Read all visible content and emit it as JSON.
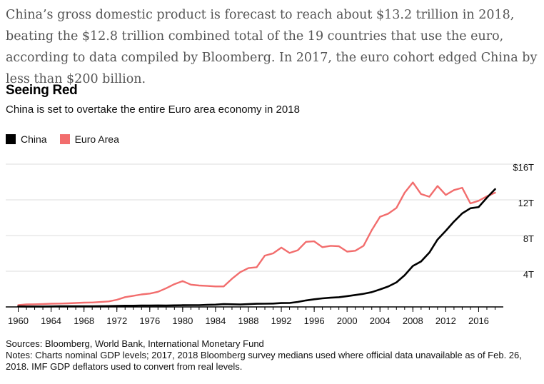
{
  "intro_text": "China’s gross domestic product is forecast to reach about $13.2 trillion in 2018, beating the $12.8 trillion combined total of the 19 countries that use the euro, according to data compiled by Bloomberg. In 2017, the euro cohort edged China by less than $200 billion.",
  "sources": "Sources: Bloomberg, World Bank, International Monetary Fund",
  "notes": "Notes: Charts nominal GDP levels; 2017, 2018 Bloomberg survey medians used where official data unavailable as of Feb. 26, 2018. IMF GDP deflators used to convert from real levels.",
  "colors": {
    "china": "#000000",
    "euro": "#f26d6d",
    "grid": "#dddddd",
    "axis": "#000000"
  },
  "chart_data": {
    "type": "line",
    "title": "Seeing Red",
    "subtitle": "China is set to overtake the entire Euro area economy in 2018",
    "legend_position": "top-left",
    "grid": true,
    "x": [
      1960,
      1961,
      1962,
      1963,
      1964,
      1965,
      1966,
      1967,
      1968,
      1969,
      1970,
      1971,
      1972,
      1973,
      1974,
      1975,
      1976,
      1977,
      1978,
      1979,
      1980,
      1981,
      1982,
      1983,
      1984,
      1985,
      1986,
      1987,
      1988,
      1989,
      1990,
      1991,
      1992,
      1993,
      1994,
      1995,
      1996,
      1997,
      1998,
      1999,
      2000,
      2001,
      2002,
      2003,
      2004,
      2005,
      2006,
      2007,
      2008,
      2009,
      2010,
      2011,
      2012,
      2013,
      2014,
      2015,
      2016,
      2017,
      2018
    ],
    "xlim": [
      1959,
      2019
    ],
    "ylim": [
      0,
      16
    ],
    "x_ticks": [
      1960,
      1964,
      1968,
      1972,
      1976,
      1980,
      1984,
      1988,
      1992,
      1996,
      2000,
      2004,
      2008,
      2012,
      2016
    ],
    "y_ticks": [
      4,
      8,
      12,
      16
    ],
    "y_tick_labels": [
      "4T",
      "8T",
      "12T",
      "$16T"
    ],
    "series": [
      {
        "name": "China",
        "color_key": "china",
        "values": [
          0.06,
          0.05,
          0.05,
          0.05,
          0.06,
          0.07,
          0.08,
          0.07,
          0.07,
          0.08,
          0.09,
          0.1,
          0.11,
          0.14,
          0.14,
          0.16,
          0.15,
          0.17,
          0.15,
          0.18,
          0.19,
          0.2,
          0.2,
          0.23,
          0.26,
          0.31,
          0.3,
          0.27,
          0.31,
          0.35,
          0.36,
          0.38,
          0.43,
          0.44,
          0.56,
          0.73,
          0.86,
          0.96,
          1.03,
          1.09,
          1.21,
          1.34,
          1.47,
          1.66,
          1.96,
          2.29,
          2.75,
          3.55,
          4.59,
          5.1,
          6.09,
          7.55,
          8.53,
          9.57,
          10.48,
          11.06,
          11.19,
          12.24,
          13.2
        ]
      },
      {
        "name": "Euro Area",
        "color_key": "euro",
        "values": [
          0.2,
          0.28,
          0.3,
          0.33,
          0.36,
          0.38,
          0.4,
          0.44,
          0.48,
          0.5,
          0.55,
          0.62,
          0.8,
          1.1,
          1.25,
          1.4,
          1.5,
          1.7,
          2.1,
          2.55,
          2.9,
          2.5,
          2.4,
          2.35,
          2.3,
          2.3,
          3.15,
          3.9,
          4.35,
          4.45,
          5.75,
          6.0,
          6.65,
          6.05,
          6.35,
          7.3,
          7.35,
          6.7,
          6.85,
          6.8,
          6.2,
          6.3,
          6.85,
          8.6,
          10.1,
          10.45,
          11.1,
          12.8,
          13.95,
          12.65,
          12.35,
          13.55,
          12.55,
          13.1,
          13.35,
          11.6,
          11.9,
          12.4,
          12.8
        ]
      }
    ]
  }
}
